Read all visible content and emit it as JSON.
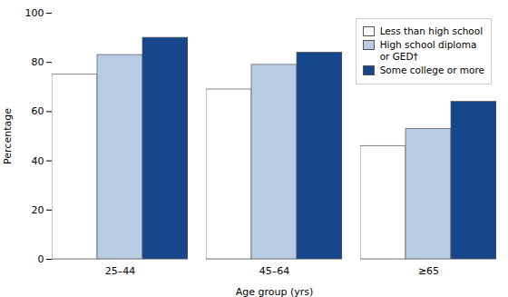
{
  "chart_data": {
    "type": "bar",
    "categories": [
      "25–44",
      "45–64",
      "≥65"
    ],
    "series": [
      {
        "name": "Less than high school",
        "color": "#ffffff",
        "values": [
          75,
          69,
          46
        ]
      },
      {
        "name": "High school diploma\nor GED†",
        "color": "#b8cce4",
        "values": [
          83,
          79,
          53
        ]
      },
      {
        "name": "Some college or more",
        "color": "#17478a",
        "values": [
          90,
          84,
          64
        ]
      }
    ],
    "xlabel": "Age group (yrs)",
    "ylabel": "Percentage",
    "ylim": [
      0,
      100
    ],
    "yticks": [
      0,
      20,
      40,
      60,
      80,
      100
    ],
    "grid": false,
    "legend": "upper right"
  }
}
